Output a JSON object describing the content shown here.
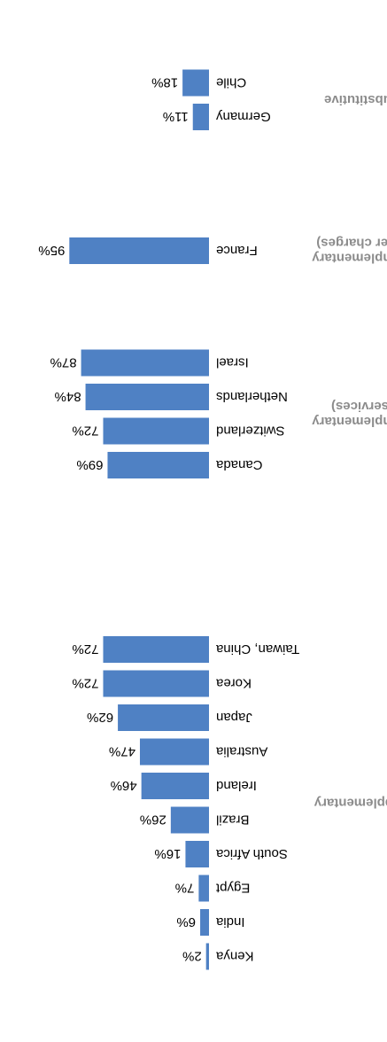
{
  "chart_data": {
    "type": "bar",
    "orientation": "rotated-180",
    "bar_color": "#4f81c4",
    "value_max": 100,
    "groups": [
      {
        "name": "Supplementary",
        "name_lines": [
          "Supplementary"
        ],
        "bars": [
          {
            "category": "Kenya",
            "value": 2,
            "label": "2%"
          },
          {
            "category": "India",
            "value": 6,
            "label": "6%"
          },
          {
            "category": "Egypt",
            "value": 7,
            "label": "7%"
          },
          {
            "category": "South Africa",
            "value": 16,
            "label": "16%"
          },
          {
            "category": "Brazil",
            "value": 26,
            "label": "26%"
          },
          {
            "category": "Ireland",
            "value": 46,
            "label": "46%"
          },
          {
            "category": "Australia",
            "value": 47,
            "label": "47%"
          },
          {
            "category": "Japan",
            "value": 62,
            "label": "62%"
          },
          {
            "category": "Korea",
            "value": 72,
            "label": "72%"
          },
          {
            "category": "Taiwan, China",
            "value": 72,
            "label": "72%"
          }
        ]
      },
      {
        "name": "Complementary (services)",
        "name_lines": [
          "Complementary",
          "(services)"
        ],
        "bars": [
          {
            "category": "Canada",
            "value": 69,
            "label": "69%"
          },
          {
            "category": "Switzerland",
            "value": 72,
            "label": "72%"
          },
          {
            "category": "Netherlands",
            "value": 84,
            "label": "84%"
          },
          {
            "category": "Israel",
            "value": 87,
            "label": "87%"
          }
        ]
      },
      {
        "name": "Complementary (user charges)",
        "name_lines": [
          "Complementary",
          "(user charges)"
        ],
        "bars": [
          {
            "category": "France",
            "value": 95,
            "label": "95%"
          }
        ]
      },
      {
        "name": "Substitutive",
        "name_lines": [
          "Substitutive"
        ],
        "bars": [
          {
            "category": "Germany",
            "value": 11,
            "label": "11%"
          },
          {
            "category": "Chile",
            "value": 18,
            "label": "18%"
          }
        ]
      }
    ]
  }
}
